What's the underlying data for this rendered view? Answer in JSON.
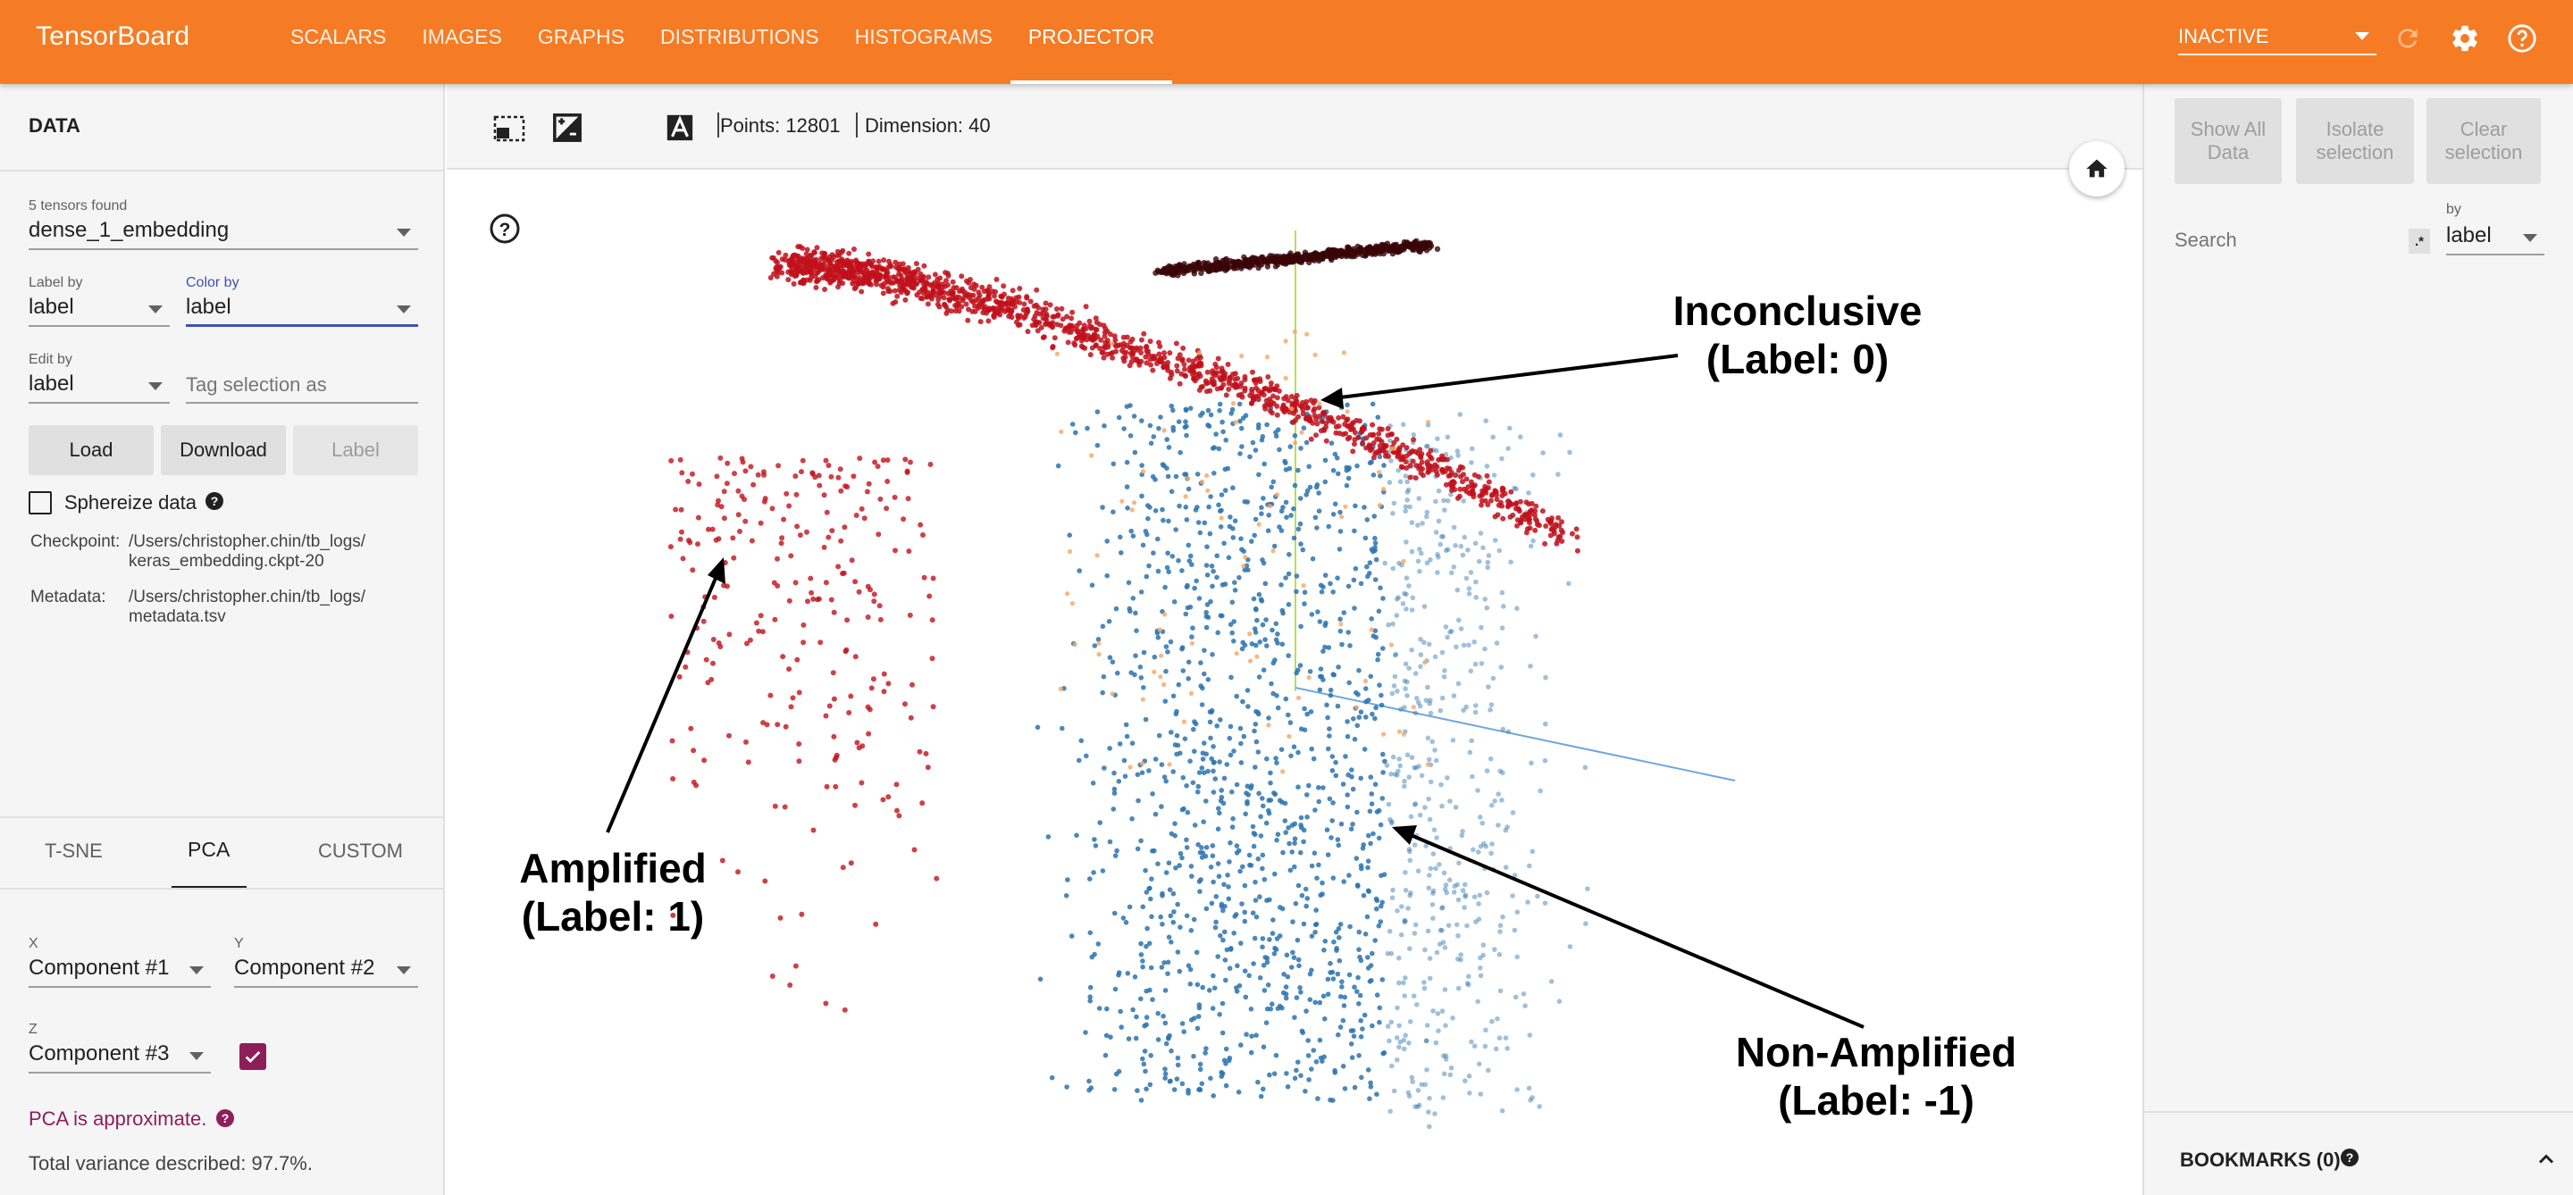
{
  "app": {
    "brand": "TensorBoard",
    "tabs": [
      {
        "label": "SCALARS"
      },
      {
        "label": "IMAGES"
      },
      {
        "label": "GRAPHS"
      },
      {
        "label": "DISTRIBUTIONS"
      },
      {
        "label": "HISTOGRAMS"
      },
      {
        "label": "PROJECTOR"
      }
    ],
    "active_tab": "PROJECTOR",
    "run_state": "INACTIVE"
  },
  "data_panel": {
    "title": "DATA",
    "tensors_found": "5 tensors found",
    "tensor": "dense_1_embedding",
    "label_by_label": "Label by",
    "label_by_value": "label",
    "color_by_label": "Color by",
    "color_by_value": "label",
    "edit_by_label": "Edit by",
    "edit_by_value": "label",
    "tag_placeholder": "Tag selection as",
    "load": "Load",
    "download": "Download",
    "label_btn": "Label",
    "sphereize": "Sphereize data",
    "checkpoint_label": "Checkpoint:",
    "checkpoint_line1": "/Users/christopher.chin/tb_logs/",
    "checkpoint_line2": "keras_embedding.ckpt-20",
    "metadata_label": "Metadata:",
    "metadata_line1": "/Users/christopher.chin/tb_logs/",
    "metadata_line2": "metadata.tsv"
  },
  "projection": {
    "tabs": [
      {
        "label": "T-SNE"
      },
      {
        "label": "PCA"
      },
      {
        "label": "CUSTOM"
      }
    ],
    "active_tab": "PCA",
    "x_label": "X",
    "x_value": "Component #1",
    "y_label": "Y",
    "y_value": "Component #2",
    "z_label": "Z",
    "z_value": "Component #3",
    "z_checked": true,
    "approx_note": "PCA is approximate.",
    "variance": "Total variance described: 97.7%."
  },
  "toolbar": {
    "points": "Points: 12801",
    "dimension": "Dimension: 40"
  },
  "inspector": {
    "show_all": [
      "Show All",
      "Data"
    ],
    "isolate": [
      "Isolate",
      "selection"
    ],
    "clear": [
      "Clear",
      "selection"
    ],
    "search_placeholder": "Search",
    "regex_glyph": ".*",
    "by_label": "by",
    "by_value": "label",
    "bookmarks": "BOOKMARKS (0)"
  },
  "annotations": {
    "inconclusive": [
      "Inconclusive",
      "(Label: 0)"
    ],
    "amplified": [
      "Amplified",
      "(Label: 1)"
    ],
    "nonamplified": [
      "Non-Amplified",
      "(Label: -1)"
    ]
  },
  "colors": {
    "brand": "#f57c24",
    "amplified": "#c0111b",
    "amplified_dark": "#3a0507",
    "nonamplified": "#2c73ae",
    "inconclusive": "#f6a562",
    "purple_accent": "#8e1e5a"
  }
}
